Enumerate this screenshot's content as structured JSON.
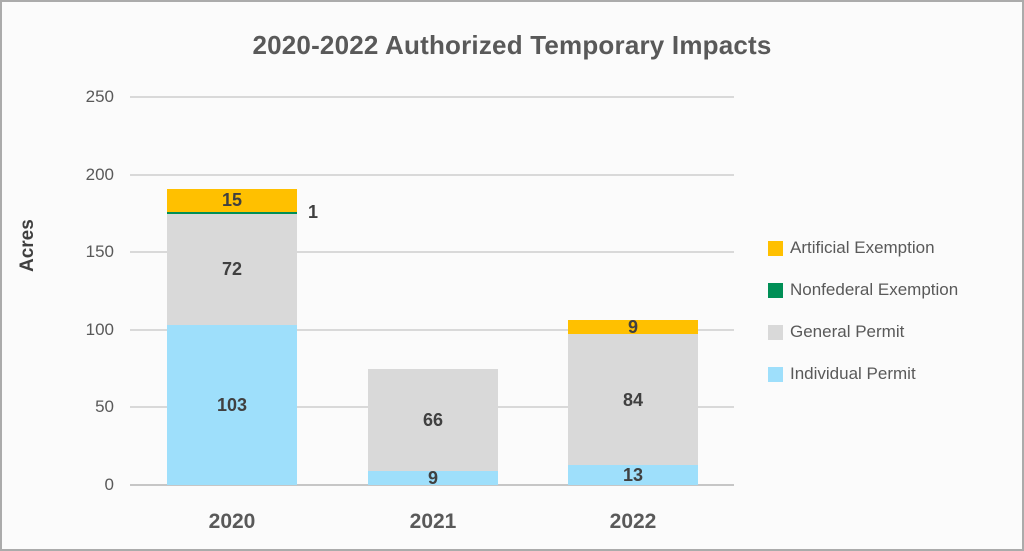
{
  "chart_data": {
    "type": "bar",
    "stacked": true,
    "title": "2020-2022 Authorized Temporary Impacts",
    "xlabel": "",
    "ylabel": "Acres",
    "categories": [
      "2020",
      "2021",
      "2022"
    ],
    "series": [
      {
        "name": "Artificial Exemption",
        "color": "#FFC000",
        "values": [
          15,
          0,
          9
        ]
      },
      {
        "name": "Nonfederal Exemption",
        "color": "#008F56",
        "values": [
          1,
          0,
          0
        ]
      },
      {
        "name": "General Permit",
        "color": "#D9D9D9",
        "values": [
          72,
          66,
          84
        ]
      },
      {
        "name": "Individual Permit",
        "color": "#9EDFFB",
        "values": [
          103,
          9,
          13
        ]
      }
    ],
    "ylim": [
      0,
      250
    ],
    "yticks": [
      0,
      50,
      100,
      150,
      200,
      250
    ],
    "grid": true,
    "legend_position": "right",
    "data_labels": true,
    "notes": "Series are stacked bottom-to-top in reverse legend order: Individual Permit, General Permit, Nonfederal Exemption, Artificial Exemption. The Nonfederal Exemption value of 1 in 2020 is labeled outside the bar to the right."
  }
}
